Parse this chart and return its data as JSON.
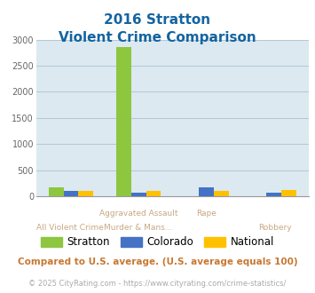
{
  "title_line1": "2016 Stratton",
  "title_line2": "Violent Crime Comparison",
  "stratton_vals": [
    175,
    2850,
    0,
    0
  ],
  "colorado_vals": [
    105,
    75,
    170,
    65
  ],
  "national_vals": [
    100,
    100,
    110,
    115
  ],
  "ylim": [
    0,
    3000
  ],
  "yticks": [
    0,
    500,
    1000,
    1500,
    2000,
    2500,
    3000
  ],
  "color_stratton": "#8dc63f",
  "color_colorado": "#4472c4",
  "color_national": "#ffc000",
  "bg_color": "#dce9f0",
  "title_color": "#1464a0",
  "label_color": "#c8a882",
  "grid_color": "#b0c8d8",
  "top_labels": [
    "",
    "Aggravated Assault",
    "Rape",
    ""
  ],
  "bot_labels": [
    "All Violent Crime",
    "Murder & Mans...",
    "",
    "Robbery"
  ],
  "footer_text": "Compared to U.S. average. (U.S. average equals 100)",
  "credit_text": "© 2025 CityRating.com - https://www.cityrating.com/crime-statistics/",
  "legend_labels": [
    "Stratton",
    "Colorado",
    "National"
  ]
}
